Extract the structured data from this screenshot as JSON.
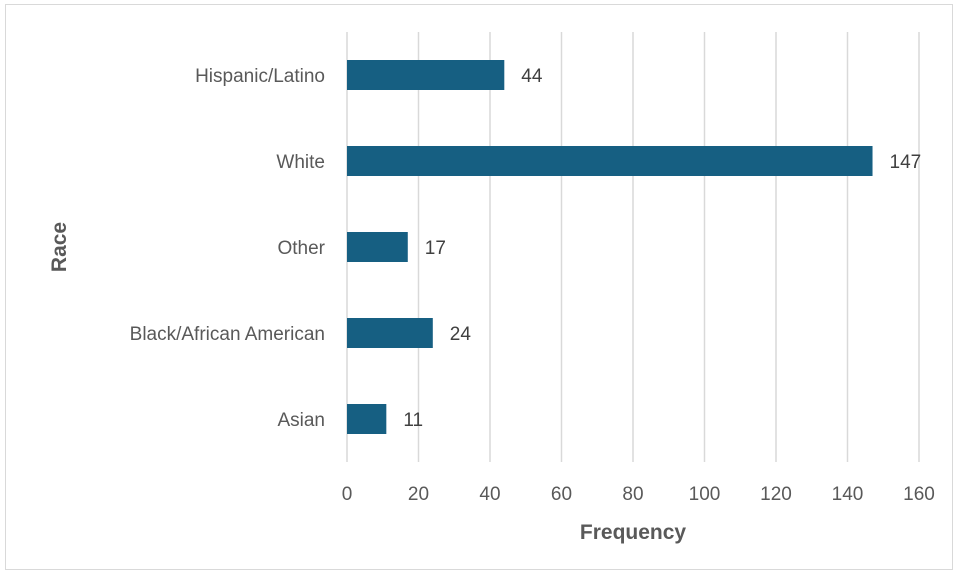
{
  "chart_data": {
    "type": "bar",
    "orientation": "horizontal",
    "categories": [
      "Hispanic/Latino",
      "White",
      "Other",
      "Black/African American",
      "Asian"
    ],
    "values": [
      44,
      147,
      17,
      24,
      11
    ],
    "data_labels": [
      "44",
      "147",
      "17",
      "24",
      "11"
    ],
    "xlabel": "Frequency",
    "ylabel": "Race",
    "xlim": [
      0,
      160
    ],
    "xticks": [
      "0",
      "20",
      "40",
      "60",
      "80",
      "100",
      "120",
      "140",
      "160"
    ],
    "grid": "vertical",
    "legend": "none",
    "bar_color": "#165f82",
    "gridline_color": "#d9d9d9",
    "text_color": "#595959"
  }
}
